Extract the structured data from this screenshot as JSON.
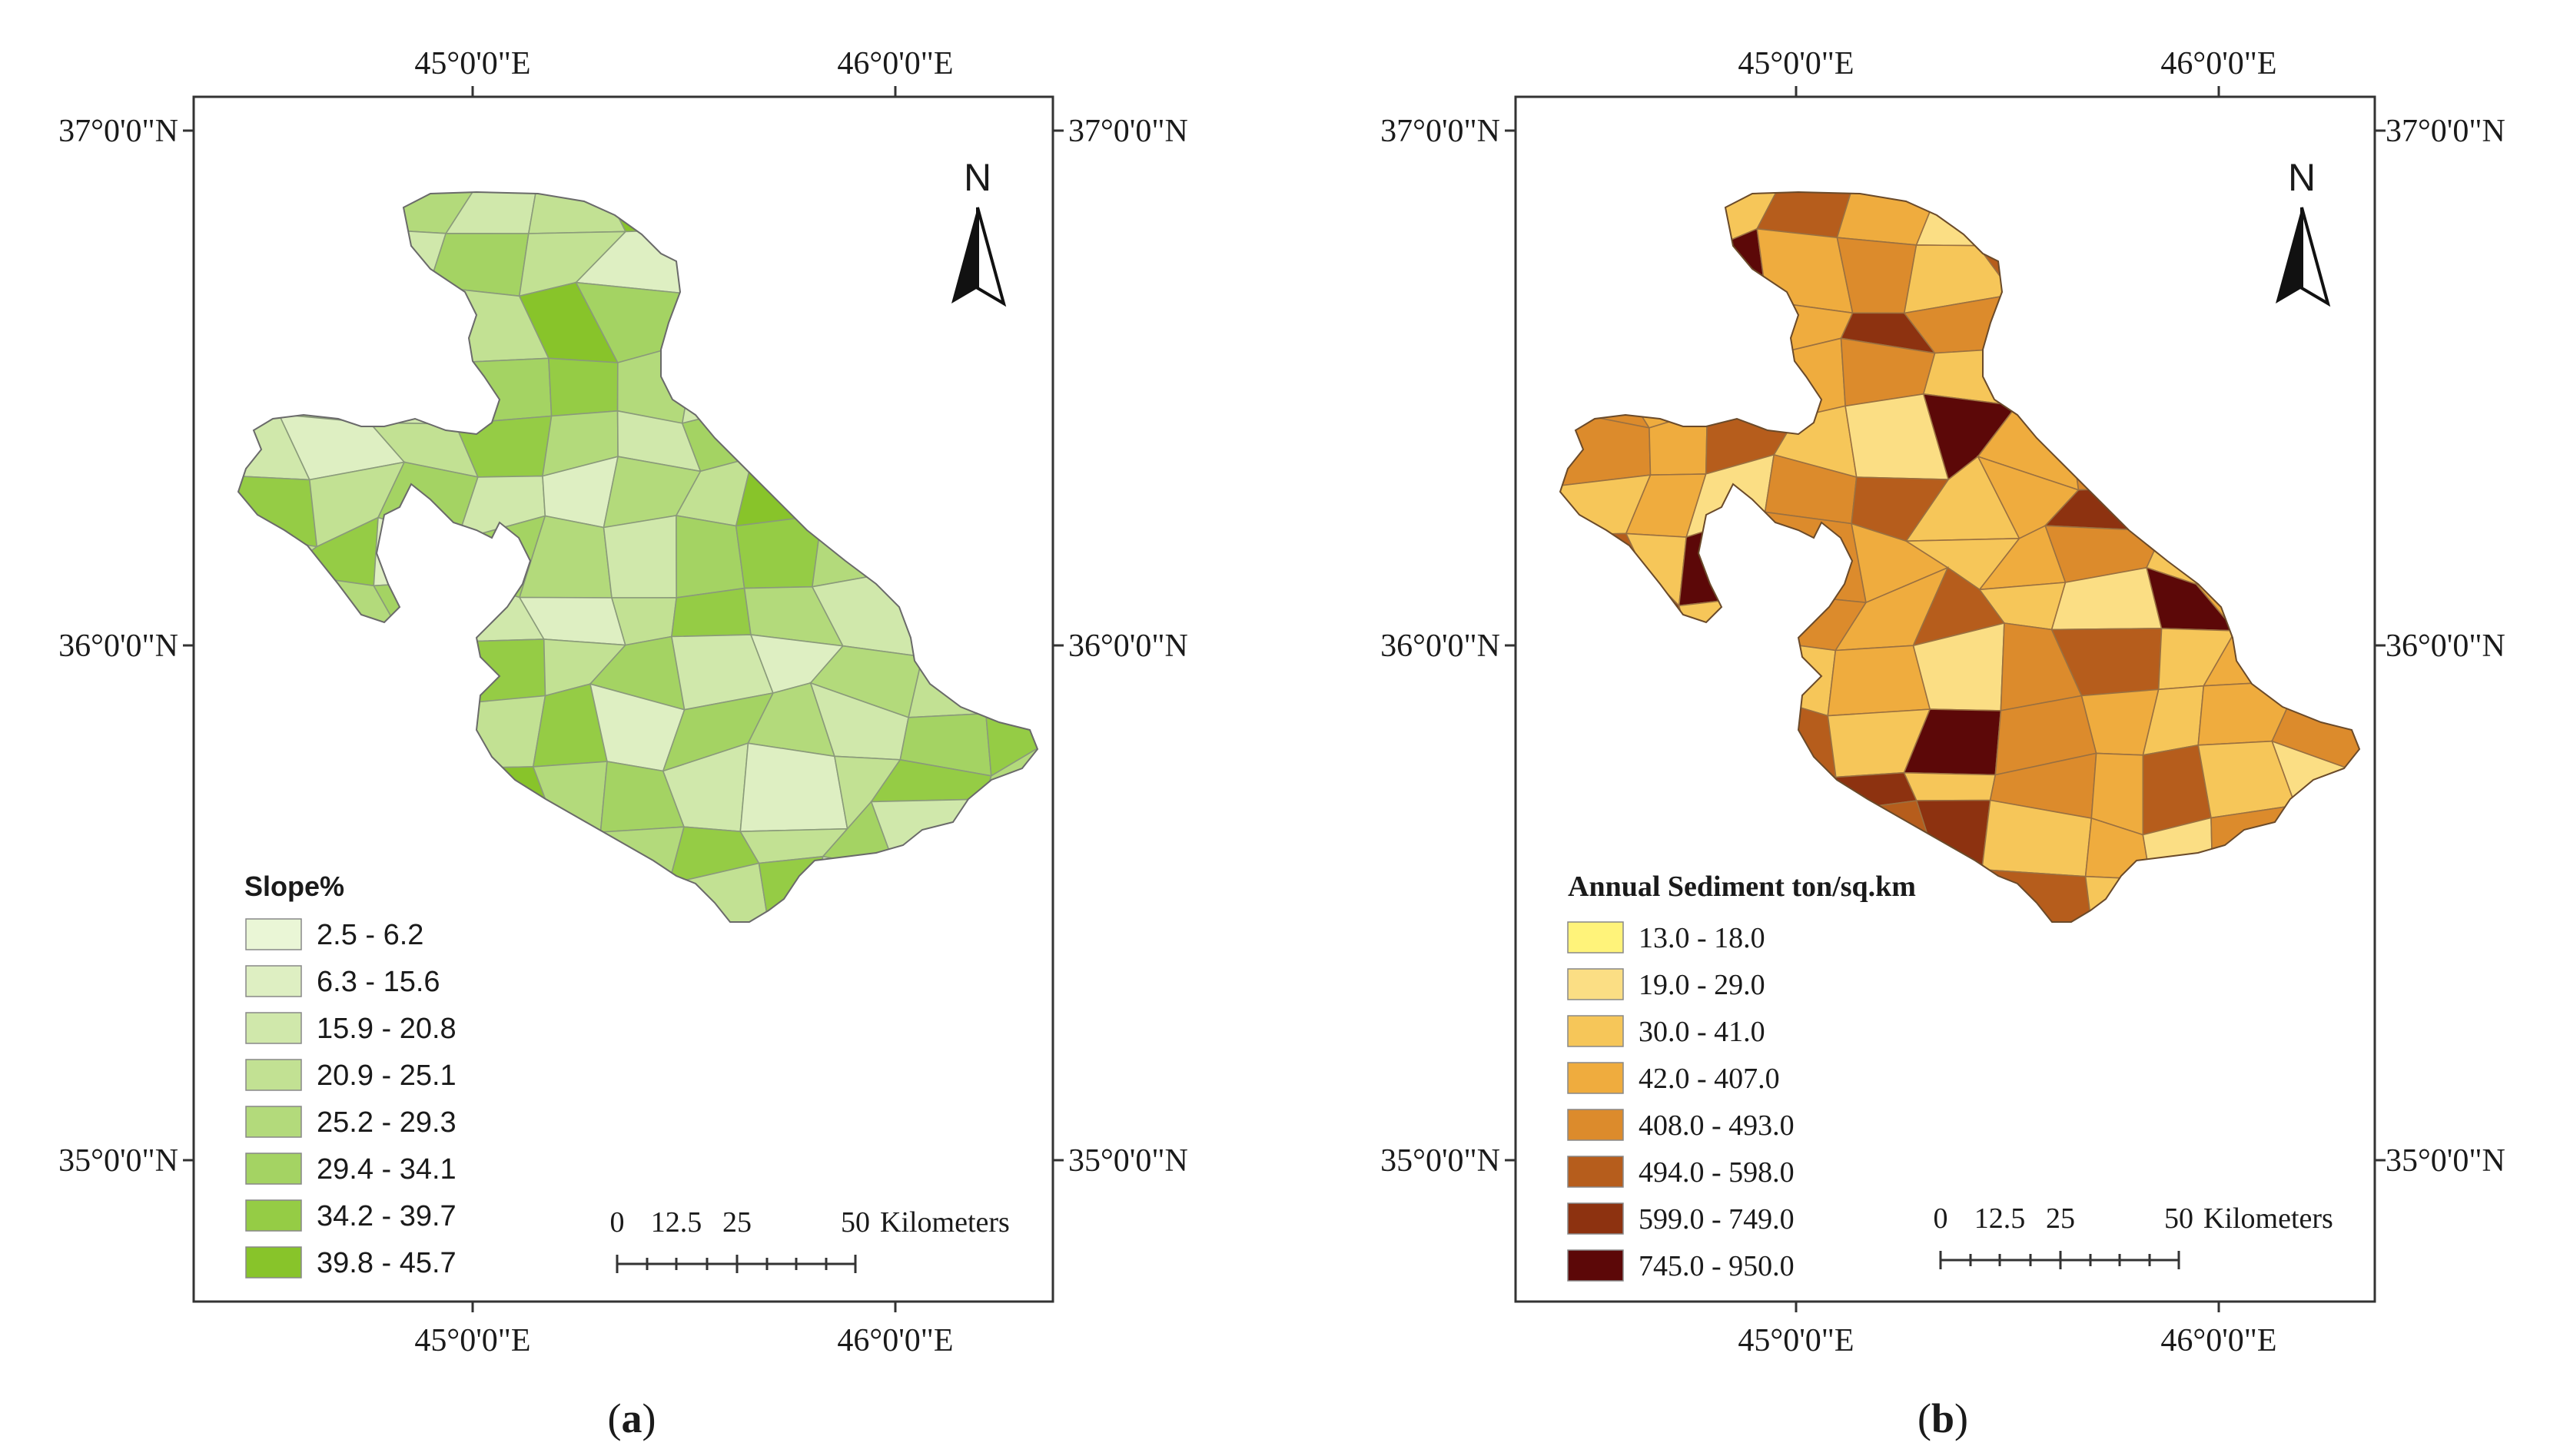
{
  "panels": [
    {
      "id": "a",
      "caption_letter": "a",
      "ticks": {
        "lon_top": [
          "45°0'0\"E",
          "46°0'0\"E"
        ],
        "lon_bottom": [
          "45°0'0\"E",
          "46°0'0\"E"
        ],
        "lat_left": [
          "37°0'0\"N",
          "36°0'0\"N",
          "35°0'0\"N"
        ],
        "lat_right": [
          "37°0'0\"N",
          "36°0'0\"N",
          "35°0'0\"N"
        ]
      },
      "north_label": "N",
      "legend": {
        "title": "Slope%",
        "items": [
          {
            "label": "2.5 - 6.2",
            "color": "#eaf6d6"
          },
          {
            "label": "6.3 - 15.6",
            "color": "#deefc2"
          },
          {
            "label": "15.9 - 20.8",
            "color": "#d0e8ab"
          },
          {
            "label": "20.9 - 25.1",
            "color": "#c2e193"
          },
          {
            "label": "25.2 - 29.3",
            "color": "#b3da7b"
          },
          {
            "label": "29.4 - 34.1",
            "color": "#a4d363"
          },
          {
            "label": "34.2 - 39.7",
            "color": "#95cc45"
          },
          {
            "label": "39.8 - 45.7",
            "color": "#88c42a"
          }
        ]
      },
      "scale_bar": {
        "labels": [
          "0",
          "12.5",
          "25",
          "50"
        ],
        "unit": "Kilometers"
      }
    },
    {
      "id": "b",
      "caption_letter": "b",
      "ticks": {
        "lon_top": [
          "45°0'0\"E",
          "46°0'0\"E"
        ],
        "lon_bottom": [
          "45°0'0\"E",
          "46°0'0\"E"
        ],
        "lat_left": [
          "37°0'0\"N",
          "36°0'0\"N",
          "35°0'0\"N"
        ],
        "lat_right": [
          "37°0'0\"N",
          "36°0'0\"N",
          "35°0'0\"N"
        ]
      },
      "north_label": "N",
      "legend": {
        "title": "Annual Sediment ton/sq.km",
        "items": [
          {
            "label": "13.0 - 18.0",
            "color": "#fff37a"
          },
          {
            "label": "19.0 - 29.0",
            "color": "#fbde84"
          },
          {
            "label": "30.0 - 41.0",
            "color": "#f6c659"
          },
          {
            "label": "42.0 - 407.0",
            "color": "#efac3e"
          },
          {
            "label": "408.0 - 493.0",
            "color": "#dc8b2c"
          },
          {
            "label": "494.0 - 598.0",
            "color": "#b65d1c"
          },
          {
            "label": "599.0 - 749.0",
            "color": "#8d3210"
          },
          {
            "label": "745.0 - 950.0",
            "color": "#5c0808"
          }
        ]
      },
      "scale_bar": {
        "labels": [
          "0",
          "12.5",
          "25",
          "50"
        ],
        "unit": "Kilometers"
      }
    }
  ],
  "map_colors": {
    "a": [
      5,
      6,
      4,
      2,
      3,
      7,
      4,
      5,
      2,
      1,
      3,
      6,
      4,
      2,
      5,
      3,
      1,
      2,
      4,
      6,
      3,
      5,
      2,
      1,
      4,
      3,
      7,
      5,
      2,
      4,
      3,
      6,
      1,
      5,
      4,
      2
    ],
    "b": [
      3,
      4,
      2,
      5,
      3,
      1,
      6,
      2,
      4,
      3,
      5,
      2,
      1,
      7,
      3,
      4,
      2,
      5,
      6,
      2,
      3,
      1,
      4,
      5,
      2,
      3,
      6,
      4,
      1,
      3,
      5,
      2,
      7,
      4,
      3,
      2
    ]
  }
}
